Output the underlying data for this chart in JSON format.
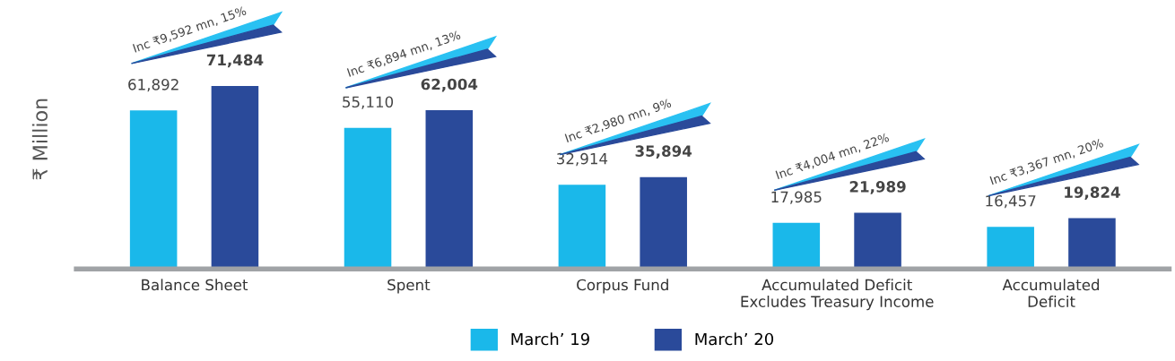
{
  "chart_data": {
    "type": "bar",
    "ylabel": "₹ Million",
    "categories": [
      "Balance Sheet",
      "Spent",
      "Corpus Fund",
      "Accumulated Deficit\nExcludes Treasury Income",
      "Accumulated\nDeficit"
    ],
    "series": [
      {
        "name": "March’ 19",
        "color": "#1ab8ea",
        "values": [
          61892,
          55110,
          32914,
          17985,
          16457
        ],
        "value_labels": [
          "61,892",
          "55,110",
          "32,914",
          "17,985",
          "16,457"
        ]
      },
      {
        "name": "March’ 20",
        "color": "#2a4a9a",
        "values": [
          71484,
          62004,
          35894,
          21989,
          19824
        ],
        "value_labels": [
          "71,484",
          "62,004",
          "35,894",
          "21,989",
          "19,824"
        ]
      }
    ],
    "annotations": [
      "Inc ₹9,592 mn, 15%",
      "Inc ₹6,894 mn, 13%",
      "Inc ₹2,980 mn, 9%",
      "Inc ₹4,004 mn, 22%",
      "Inc ₹3,367 mn, 20%"
    ],
    "legend": "bottom",
    "grid": false
  }
}
